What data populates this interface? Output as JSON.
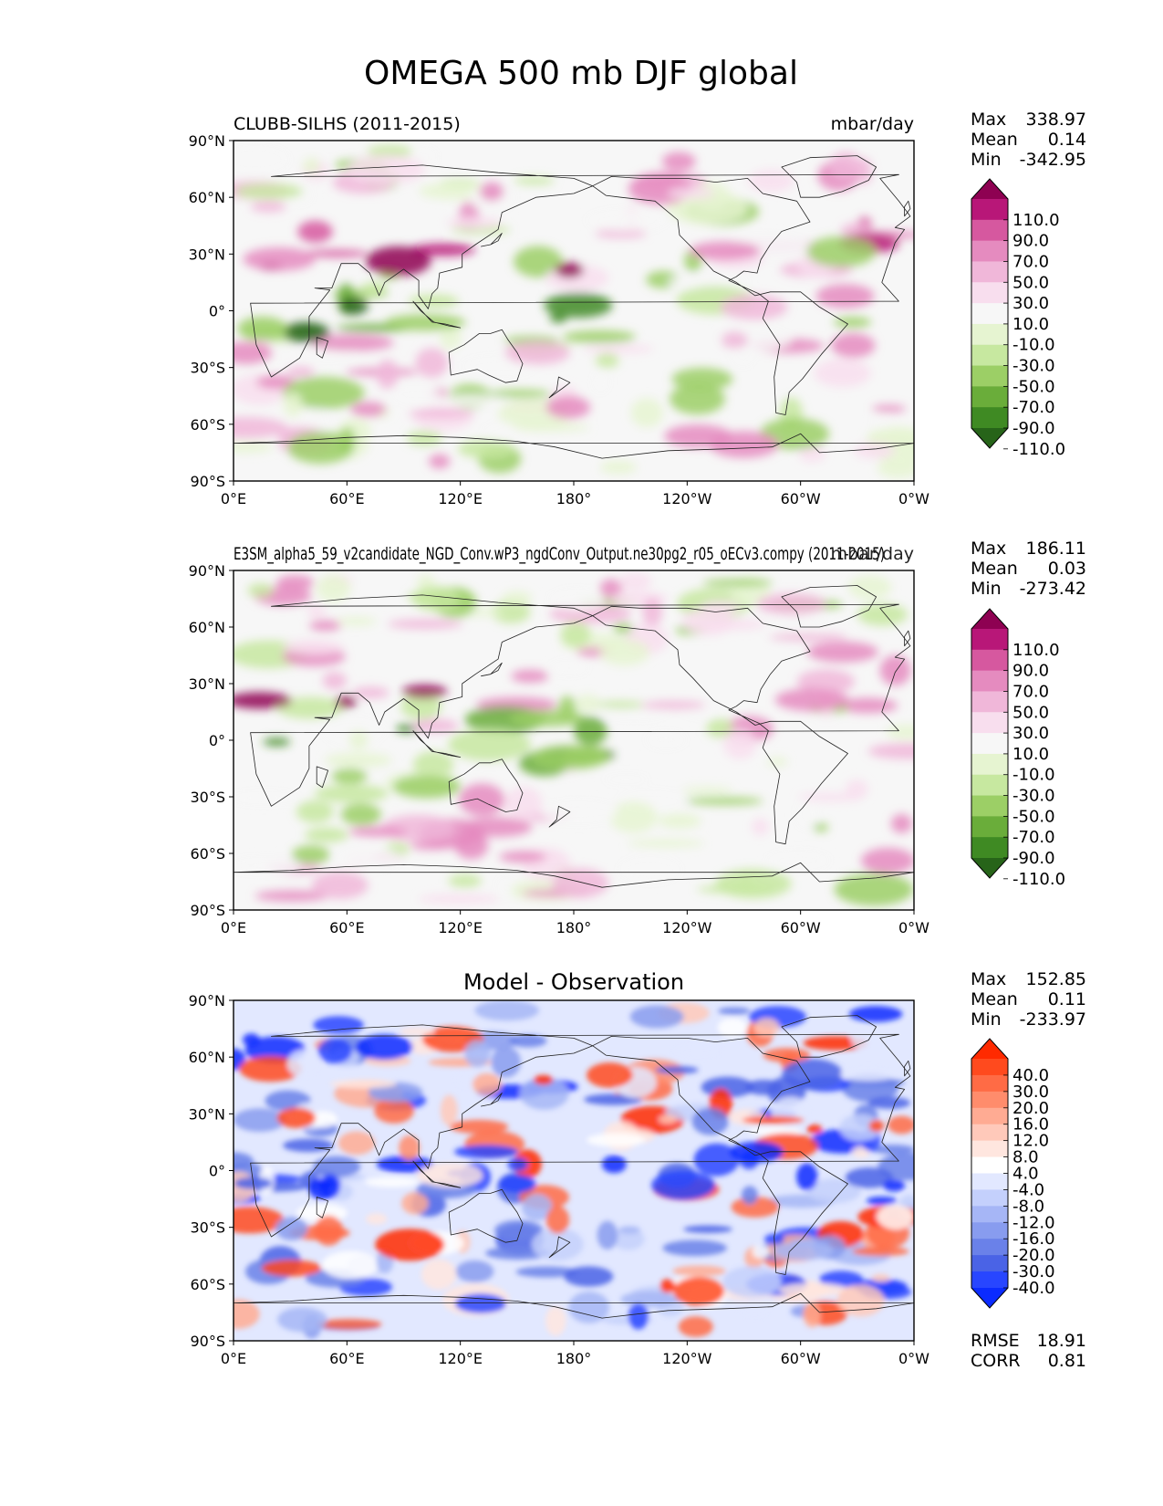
{
  "figure_title": "OMEGA 500 mb DJF global",
  "chart_data": [
    {
      "type": "heatmap",
      "name": "test",
      "title_left": "CLUBB-SILHS (2011-2015)",
      "title_right": "mbar/day",
      "title_center": "",
      "xlabels": [
        "0°E",
        "60°E",
        "120°E",
        "180°",
        "120°W",
        "60°W",
        "0°W"
      ],
      "ylabels": [
        "90°N",
        "60°N",
        "30°N",
        "0°",
        "30°S",
        "60°S",
        "90°S"
      ],
      "xlim": [
        0,
        360
      ],
      "ylim": [
        -90,
        90
      ],
      "stats": [
        {
          "label": "Max",
          "value": "338.97"
        },
        {
          "label": "Mean",
          "value": "0.14"
        },
        {
          "label": "Min",
          "value": "-342.95"
        }
      ],
      "colorbar": {
        "levels": [
          "110.0",
          "90.0",
          "70.0",
          "50.0",
          "30.0",
          "10.0",
          "-10.0",
          "-30.0",
          "-50.0",
          "-70.0",
          "-90.0",
          "-110.0"
        ],
        "colors": [
          "#8e0152",
          "#b81778",
          "#d6589f",
          "#e58bbf",
          "#f0b7d9",
          "#f8deee",
          "#f7f7f7",
          "#e6f4d1",
          "#c7e8a0",
          "#9ccf66",
          "#6aad3a",
          "#3f8a23",
          "#276419"
        ]
      },
      "footer": []
    },
    {
      "type": "heatmap",
      "name": "reference",
      "title_left": "E3SM_alpha5_59_v2candidate_NGD_Conv.wP3_ngdConv_Output.ne30pg2_r05_oECv3.compy (2011-2015)",
      "title_right": "mbar/day",
      "title_center": "",
      "xlabels": [
        "0°E",
        "60°E",
        "120°E",
        "180°",
        "120°W",
        "60°W",
        "0°W"
      ],
      "ylabels": [
        "90°N",
        "60°N",
        "30°N",
        "0°",
        "30°S",
        "60°S",
        "90°S"
      ],
      "xlim": [
        0,
        360
      ],
      "ylim": [
        -90,
        90
      ],
      "stats": [
        {
          "label": "Max",
          "value": "186.11"
        },
        {
          "label": "Mean",
          "value": "0.03"
        },
        {
          "label": "Min",
          "value": "-273.42"
        }
      ],
      "colorbar": {
        "levels": [
          "110.0",
          "90.0",
          "70.0",
          "50.0",
          "30.0",
          "10.0",
          "-10.0",
          "-30.0",
          "-50.0",
          "-70.0",
          "-90.0",
          "-110.0"
        ],
        "colors": [
          "#8e0152",
          "#b81778",
          "#d6589f",
          "#e58bbf",
          "#f0b7d9",
          "#f8deee",
          "#f7f7f7",
          "#e6f4d1",
          "#c7e8a0",
          "#9ccf66",
          "#6aad3a",
          "#3f8a23",
          "#276419"
        ]
      },
      "footer": []
    },
    {
      "type": "heatmap",
      "name": "difference",
      "title_left": "",
      "title_right": "",
      "title_center": "Model - Observation",
      "xlabels": [
        "0°E",
        "60°E",
        "120°E",
        "180°",
        "120°W",
        "60°W",
        "0°W"
      ],
      "ylabels": [
        "90°N",
        "60°N",
        "30°N",
        "0°",
        "30°S",
        "60°S",
        "90°S"
      ],
      "xlim": [
        0,
        360
      ],
      "ylim": [
        -90,
        90
      ],
      "stats": [
        {
          "label": "Max",
          "value": "152.85"
        },
        {
          "label": "Mean",
          "value": "0.11"
        },
        {
          "label": "Min",
          "value": "-233.97"
        }
      ],
      "colorbar": {
        "levels": [
          "40.0",
          "30.0",
          "20.0",
          "16.0",
          "12.0",
          "8.0",
          "4.0",
          "-4.0",
          "-8.0",
          "-12.0",
          "-16.0",
          "-20.0",
          "-30.0",
          "-40.0"
        ],
        "colors": [
          "#ff2a00",
          "#ff4a1e",
          "#ff6b45",
          "#ff8c6c",
          "#ffab93",
          "#ffc9ba",
          "#ffe6df",
          "#ffffff",
          "#e2e8ff",
          "#c4d0fc",
          "#a6b6f6",
          "#889cef",
          "#6a81e9",
          "#4a63e6",
          "#2846ff",
          "#0b2bff"
        ]
      },
      "footer": [
        {
          "label": "RMSE",
          "value": "18.91"
        },
        {
          "label": "CORR",
          "value": "0.81"
        }
      ]
    }
  ]
}
